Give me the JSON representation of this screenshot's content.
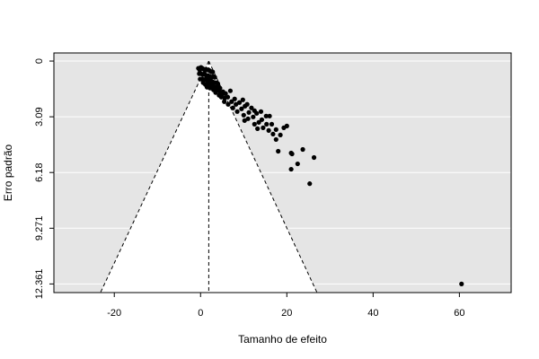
{
  "chart_data": {
    "type": "scatter",
    "title": "",
    "xlabel": "Tamanho de efeito",
    "ylabel": "Erro padrão",
    "xlim": [
      -34,
      72
    ],
    "ylim": [
      12.84,
      -0.45
    ],
    "x_ticks": [
      -20,
      0,
      20,
      40,
      60
    ],
    "x_tick_labels": [
      "-20",
      "0",
      "20",
      "40",
      "60"
    ],
    "y_ticks": [
      0,
      3.09,
      6.18,
      9.271,
      12.361
    ],
    "y_tick_labels": [
      "0",
      "3.09",
      "6.18",
      "9.271",
      "12.361"
    ],
    "y_axis_reversed": true,
    "grid": "horizontal",
    "colors": {
      "plot_background": "#e5e5e5",
      "funnel_background": "#ffffff",
      "gridline": "#ffffff",
      "point": "#000000",
      "line": "#000000"
    },
    "funnel": {
      "center": 1.9,
      "apex_se": 0,
      "base_se": 12.84,
      "base_left": -23.2,
      "base_right": 27.0,
      "line_style": "dashed"
    },
    "points": [
      [
        -0.5,
        0.4
      ],
      [
        -0.2,
        0.5
      ],
      [
        0.1,
        0.35
      ],
      [
        0.4,
        0.4
      ],
      [
        0.7,
        0.45
      ],
      [
        1.0,
        0.5
      ],
      [
        1.3,
        0.45
      ],
      [
        1.6,
        0.5
      ],
      [
        1.9,
        0.5
      ],
      [
        2.2,
        0.55
      ],
      [
        2.5,
        0.6
      ],
      [
        2.8,
        0.6
      ],
      [
        -0.3,
        0.7
      ],
      [
        0.1,
        0.7
      ],
      [
        0.5,
        0.75
      ],
      [
        0.9,
        0.7
      ],
      [
        1.3,
        0.8
      ],
      [
        1.7,
        0.8
      ],
      [
        2.1,
        0.85
      ],
      [
        2.5,
        0.9
      ],
      [
        2.9,
        0.85
      ],
      [
        3.3,
        0.9
      ],
      [
        -0.1,
        1.0
      ],
      [
        0.4,
        1.0
      ],
      [
        0.8,
        1.05
      ],
      [
        1.2,
        1.0
      ],
      [
        1.6,
        1.05
      ],
      [
        2.0,
        1.1
      ],
      [
        2.4,
        1.1
      ],
      [
        2.8,
        1.15
      ],
      [
        3.2,
        1.2
      ],
      [
        3.6,
        1.2
      ],
      [
        4.0,
        1.25
      ],
      [
        0.6,
        1.2
      ],
      [
        1.1,
        1.3
      ],
      [
        1.5,
        1.25
      ],
      [
        2.0,
        1.3
      ],
      [
        2.5,
        1.35
      ],
      [
        3.0,
        1.4
      ],
      [
        3.5,
        1.45
      ],
      [
        4.0,
        1.4
      ],
      [
        4.5,
        1.5
      ],
      [
        1.5,
        1.45
      ],
      [
        2.2,
        1.5
      ],
      [
        3.0,
        1.6
      ],
      [
        3.8,
        1.6
      ],
      [
        4.5,
        1.7
      ],
      [
        5.2,
        1.7
      ],
      [
        3.5,
        1.75
      ],
      [
        4.3,
        1.9
      ],
      [
        5.0,
        1.85
      ],
      [
        5.8,
        1.8
      ],
      [
        4.8,
        2.0
      ],
      [
        5.6,
        2.05
      ],
      [
        6.3,
        2.0
      ],
      [
        6.9,
        1.65
      ],
      [
        5.5,
        2.25
      ],
      [
        6.4,
        2.4
      ],
      [
        7.2,
        2.25
      ],
      [
        7.9,
        2.1
      ],
      [
        7.5,
        2.6
      ],
      [
        8.2,
        2.4
      ],
      [
        9.0,
        2.3
      ],
      [
        9.8,
        2.15
      ],
      [
        8.5,
        2.8
      ],
      [
        9.5,
        2.65
      ],
      [
        10.3,
        2.5
      ],
      [
        10.8,
        2.4
      ],
      [
        10.0,
        3.0
      ],
      [
        11.2,
        2.85
      ],
      [
        11.8,
        2.6
      ],
      [
        12.5,
        2.75
      ],
      [
        10.2,
        3.3
      ],
      [
        11.0,
        3.2
      ],
      [
        12.2,
        3.1
      ],
      [
        13.0,
        2.9
      ],
      [
        14.0,
        2.8
      ],
      [
        12.5,
        3.5
      ],
      [
        13.5,
        3.4
      ],
      [
        14.2,
        3.25
      ],
      [
        15.2,
        3.05
      ],
      [
        16.0,
        3.05
      ],
      [
        13.2,
        3.75
      ],
      [
        14.5,
        3.7
      ],
      [
        15.3,
        3.5
      ],
      [
        16.5,
        3.5
      ],
      [
        17.5,
        3.8
      ],
      [
        15.8,
        3.85
      ],
      [
        16.8,
        4.05
      ],
      [
        17.5,
        4.35
      ],
      [
        18.5,
        4.1
      ],
      [
        19.3,
        3.7
      ],
      [
        20.0,
        3.6
      ],
      [
        18.0,
        5.0
      ],
      [
        21.0,
        5.1
      ],
      [
        21.2,
        5.15
      ],
      [
        22.5,
        5.7
      ],
      [
        23.7,
        4.9
      ],
      [
        26.3,
        5.35
      ],
      [
        21.0,
        6.0
      ],
      [
        25.3,
        6.8
      ],
      [
        60.5,
        12.36
      ]
    ]
  }
}
